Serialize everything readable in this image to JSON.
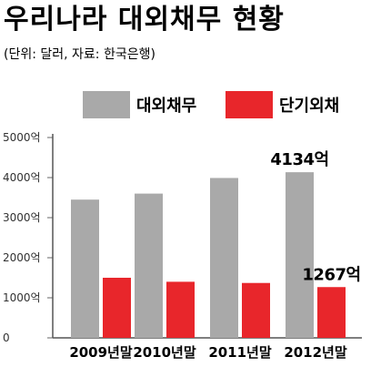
{
  "header": {
    "title": "우리나라 대외채무 현황",
    "subtitle": "(단위: 달러, 자료: 한국은행)"
  },
  "chart_data": {
    "type": "bar",
    "title": "우리나라 대외채무 현황",
    "subtitle": "(단위: 달러, 자료: 한국은행)",
    "categories": [
      "2009년말",
      "2010년말",
      "2011년말",
      "2012년말"
    ],
    "series": [
      {
        "name": "대외채무",
        "values": [
          3450,
          3600,
          3990,
          4134
        ],
        "color": "#a9a9a9"
      },
      {
        "name": "단기외채",
        "values": [
          1500,
          1400,
          1370,
          1267
        ],
        "color": "#e8262b"
      }
    ],
    "yticks": [
      "0",
      "1000억",
      "2000억",
      "3000억",
      "4000억",
      "5000억"
    ],
    "ylim": [
      0,
      5000
    ],
    "data_labels": [
      {
        "series": 0,
        "index": 3,
        "text": "4134억"
      },
      {
        "series": 1,
        "index": 3,
        "text": "1267억"
      }
    ],
    "grid": false,
    "legend_position": "top"
  }
}
